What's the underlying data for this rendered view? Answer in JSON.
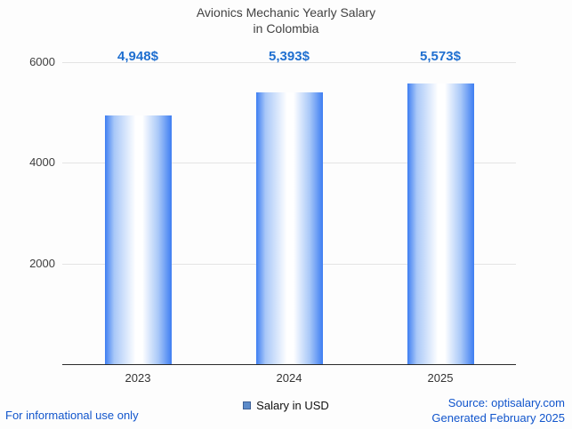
{
  "title": {
    "line1": "Avionics Mechanic Yearly Salary",
    "line2": "in Colombia"
  },
  "chart_data": {
    "type": "bar",
    "title": "Avionics Mechanic Yearly Salary in Colombia",
    "categories": [
      "2023",
      "2024",
      "2025"
    ],
    "values": [
      4948,
      5393,
      5573
    ],
    "value_labels": [
      "4,948$",
      "5,393$",
      "5,573$"
    ],
    "series_name": "Salary in USD",
    "xlabel": "",
    "ylabel": "",
    "ylim": [
      0,
      6000
    ],
    "yticks": [
      2000,
      4000,
      6000
    ],
    "grid": true,
    "legend_position": "bottom"
  },
  "legend": {
    "label": "Salary in USD"
  },
  "footer": {
    "left": "For informational use only",
    "source": "Source: optisalary.com",
    "generated": "Generated February 2025"
  },
  "colors": {
    "bar_edge": "#3e7ef2",
    "bar_mid": "#a9c8f8",
    "bar_center": "#ffffff",
    "value_label": "#1f6fd0",
    "link_blue": "#1155cc",
    "legend_swatch": "#5c8bc9",
    "gridline": "#e4e4e4",
    "axis_line": "#2b2b2b"
  }
}
